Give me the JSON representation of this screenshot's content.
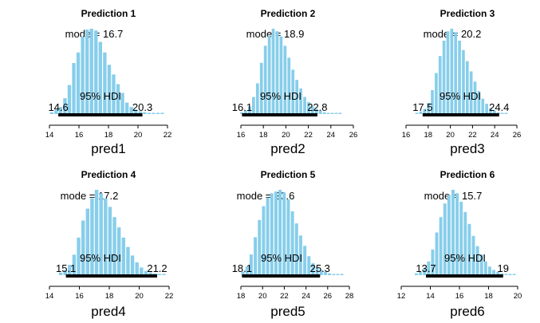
{
  "palette": {
    "bar": "#87ceeb",
    "hdi_line": "#000000",
    "text": "#000000",
    "background": "#ffffff"
  },
  "chart_data": [
    {
      "type": "bar",
      "title": "Prediction 1",
      "xlabel": "pred1",
      "mode_label": "mode = 16.7",
      "hdi_text": "95% HDI",
      "hdi_low": 14.6,
      "hdi_high": 20.3,
      "hdi_low_label": "14.6",
      "hdi_high_label": "20.3",
      "xlim": [
        14,
        22
      ],
      "ticks": [
        14,
        16,
        18,
        20,
        22
      ],
      "tick_labels": [
        "14",
        "16",
        "18",
        "20",
        "22"
      ],
      "bin_start": 14.0,
      "bin_width": 0.3,
      "values": [
        2,
        5,
        8,
        18,
        33,
        58,
        70,
        88,
        96,
        97,
        95,
        82,
        70,
        56,
        45,
        34,
        24,
        13,
        8,
        5,
        3,
        2,
        1,
        1,
        0,
        1
      ]
    },
    {
      "type": "bar",
      "title": "Prediction 2",
      "xlabel": "pred2",
      "mode_label": "mode = 18.9",
      "hdi_text": "95% HDI",
      "hdi_low": 16.1,
      "hdi_high": 22.8,
      "hdi_low_label": "16.1",
      "hdi_high_label": "22.8",
      "xlim": [
        16,
        26
      ],
      "ticks": [
        16,
        18,
        20,
        22,
        24,
        26
      ],
      "tick_labels": [
        "16",
        "18",
        "20",
        "22",
        "24",
        "26"
      ],
      "bin_start": 15.9,
      "bin_width": 0.35,
      "values": [
        2,
        4,
        9,
        20,
        36,
        60,
        80,
        92,
        100,
        97,
        91,
        80,
        66,
        52,
        40,
        30,
        20,
        14,
        9,
        6,
        4,
        2,
        1,
        1,
        0,
        1
      ]
    },
    {
      "type": "bar",
      "title": "Prediction 3",
      "xlabel": "pred3",
      "mode_label": "mode = 20.2",
      "hdi_text": "95% HDI",
      "hdi_low": 17.5,
      "hdi_high": 24.4,
      "hdi_low_label": "17.5",
      "hdi_high_label": "24.4",
      "xlim": [
        16,
        26
      ],
      "ticks": [
        16,
        18,
        20,
        22,
        24,
        26
      ],
      "tick_labels": [
        "16",
        "18",
        "20",
        "22",
        "24",
        "26"
      ],
      "bin_start": 16.8,
      "bin_width": 0.35,
      "values": [
        1,
        3,
        6,
        13,
        28,
        48,
        68,
        86,
        97,
        100,
        96,
        86,
        75,
        62,
        50,
        38,
        27,
        18,
        12,
        7,
        4,
        2,
        1,
        1
      ]
    },
    {
      "type": "bar",
      "title": "Prediction 4",
      "xlabel": "pred4",
      "mode_label": "mode = 17.2",
      "hdi_text": "95% HDI",
      "hdi_low": 15.1,
      "hdi_high": 21.2,
      "hdi_low_label": "15.1",
      "hdi_high_label": "21.2",
      "xlim": [
        14,
        22
      ],
      "ticks": [
        14,
        16,
        18,
        20,
        22
      ],
      "tick_labels": [
        "14",
        "16",
        "18",
        "20",
        "22"
      ],
      "bin_start": 14.6,
      "bin_width": 0.3,
      "values": [
        3,
        6,
        12,
        24,
        44,
        64,
        78,
        90,
        100,
        96,
        90,
        80,
        68,
        56,
        44,
        33,
        23,
        15,
        9,
        5,
        3,
        2,
        1,
        1
      ]
    },
    {
      "type": "bar",
      "title": "Prediction 5",
      "xlabel": "pred5",
      "mode_label": "mode = 20.6",
      "hdi_text": "95% HDI",
      "hdi_low": 18.1,
      "hdi_high": 25.3,
      "hdi_low_label": "18.1",
      "hdi_high_label": "25.3",
      "xlim": [
        18,
        28
      ],
      "ticks": [
        18,
        20,
        22,
        24,
        26,
        28
      ],
      "tick_labels": [
        "18",
        "20",
        "22",
        "24",
        "26",
        "28"
      ],
      "bin_start": 18.0,
      "bin_width": 0.38,
      "values": [
        4,
        10,
        24,
        44,
        64,
        80,
        90,
        95,
        97,
        99,
        96,
        88,
        74,
        60,
        46,
        34,
        22,
        14,
        9,
        6,
        4,
        2,
        1,
        1,
        1
      ]
    },
    {
      "type": "bar",
      "title": "Prediction 6",
      "xlabel": "pred6",
      "mode_label": "mode = 15.7",
      "hdi_text": "95% HDI",
      "hdi_low": 13.7,
      "hdi_high": 19,
      "hdi_low_label": "13.7",
      "hdi_high_label": "19",
      "xlim": [
        12,
        20
      ],
      "ticks": [
        12,
        14,
        16,
        18,
        20
      ],
      "tick_labels": [
        "12",
        "14",
        "16",
        "18",
        "20"
      ],
      "bin_start": 12.9,
      "bin_width": 0.28,
      "values": [
        2,
        4,
        8,
        16,
        30,
        50,
        68,
        84,
        94,
        100,
        96,
        86,
        74,
        60,
        46,
        34,
        24,
        16,
        10,
        6,
        4,
        2,
        1,
        1,
        1
      ]
    }
  ]
}
